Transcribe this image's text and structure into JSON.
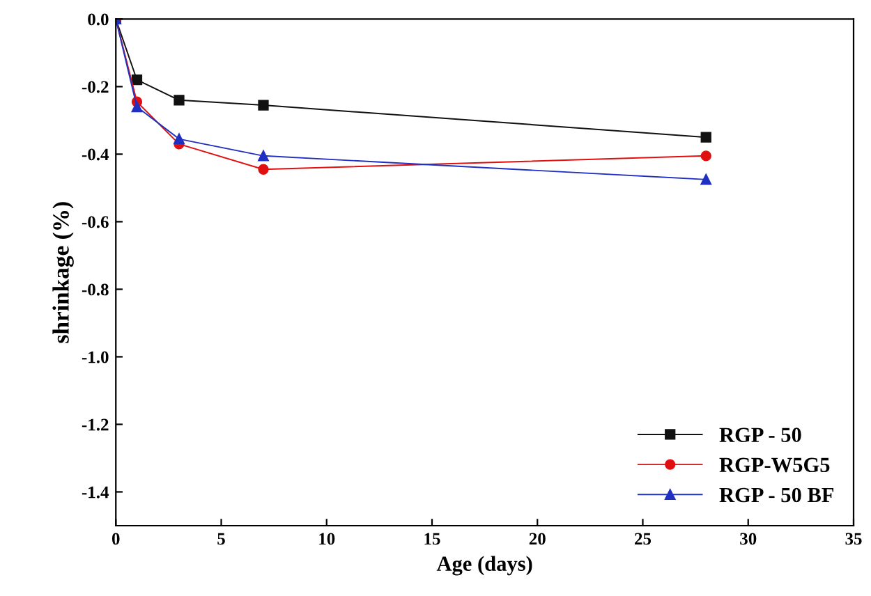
{
  "chart_data": {
    "type": "line",
    "xlabel": "Age (days)",
    "ylabel": "shrinkage (%)",
    "x": [
      0,
      1,
      3,
      7,
      28
    ],
    "series": [
      {
        "name": "RGP - 50",
        "color": "#111111",
        "marker": "square",
        "values": [
          0,
          -0.18,
          -0.24,
          -0.255,
          -0.35
        ]
      },
      {
        "name": "RGP-W5G5",
        "color": "#e01010",
        "marker": "circle",
        "values": [
          0,
          -0.245,
          -0.37,
          -0.445,
          -0.405
        ]
      },
      {
        "name": "RGP - 50 BF",
        "color": "#2030c0",
        "marker": "triangle",
        "values": [
          0,
          -0.26,
          -0.355,
          -0.405,
          -0.475
        ]
      }
    ],
    "xlim": [
      0,
      35
    ],
    "xticks": [
      0,
      5,
      10,
      15,
      20,
      25,
      30,
      35
    ],
    "ylim": [
      -1.5,
      0
    ],
    "yticks": [
      {
        "value": -1.4,
        "label": "-1.4"
      },
      {
        "value": -1.2,
        "label": "-1.2"
      },
      {
        "value": -1.0,
        "label": "-1.0"
      },
      {
        "value": -0.8,
        "label": "-0.8"
      },
      {
        "value": -0.6,
        "label": "-0.6"
      },
      {
        "value": -0.4,
        "label": "-0.4"
      },
      {
        "value": -0.2,
        "label": "-0.2"
      },
      {
        "value": 0,
        "label": "0.0"
      }
    ],
    "legend": "bottom right",
    "grid": false,
    "line_style": "solid"
  }
}
